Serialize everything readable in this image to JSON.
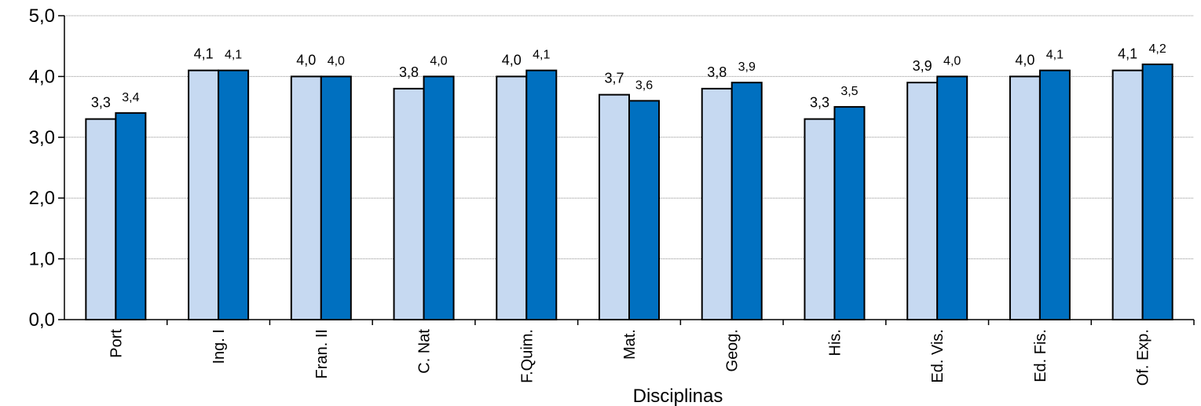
{
  "chart_data": {
    "type": "bar",
    "xlabel": "Disciplinas",
    "ylabel": "",
    "ylim": [
      0,
      5
    ],
    "yticks": [
      "0,0",
      "1,0",
      "2,0",
      "3,0",
      "4,0",
      "5,0"
    ],
    "grid": true,
    "legend": "none",
    "categories": [
      "Port",
      "Ing. I",
      "Fran. II",
      "C. Nat",
      "F.Quim.",
      "Mat.",
      "Geog.",
      "His.",
      "Ed. Vis.",
      "Ed. Fis.",
      "Of. Exp."
    ],
    "series": [
      {
        "color": "#c6d9f1",
        "values": [
          3.3,
          4.1,
          4.0,
          3.8,
          4.0,
          3.7,
          3.8,
          3.3,
          3.9,
          4.0,
          4.1
        ],
        "labels": [
          "3,3",
          "4,1",
          "4,0",
          "3,8",
          "4,0",
          "3,7",
          "3,8",
          "3,3",
          "3,9",
          "4,0",
          "4,1"
        ]
      },
      {
        "color": "#0070c0",
        "values": [
          3.4,
          4.1,
          4.0,
          4.0,
          4.1,
          3.6,
          3.9,
          3.5,
          4.0,
          4.1,
          4.2
        ],
        "labels": [
          "3,4",
          "4,1",
          "4,0",
          "4,0",
          "4,1",
          "3,6",
          "3,9",
          "3,5",
          "4,0",
          "4,1",
          "4,2"
        ]
      }
    ]
  }
}
